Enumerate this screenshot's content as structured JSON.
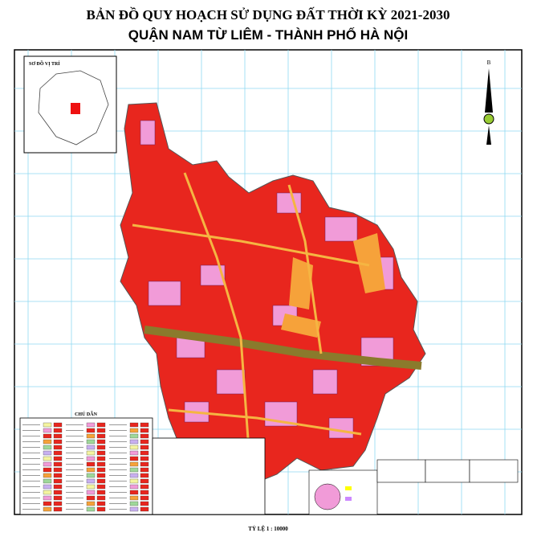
{
  "header": {
    "title": "BẢN ĐỒ QUY HOẠCH SỬ DỤNG ĐẤT THỜI KỲ 2021-2030",
    "subtitle": "QUẬN NAM TỪ LIÊM - THÀNH PHỐ HÀ NỘI"
  },
  "inset": {
    "label": "SƠ ĐỒ VỊ TRÍ"
  },
  "legend": {
    "title": "CHÚ DẪN"
  },
  "compass": {
    "label": "B"
  },
  "scale": {
    "label": "TỶ LỆ 1 : 10000"
  }
}
